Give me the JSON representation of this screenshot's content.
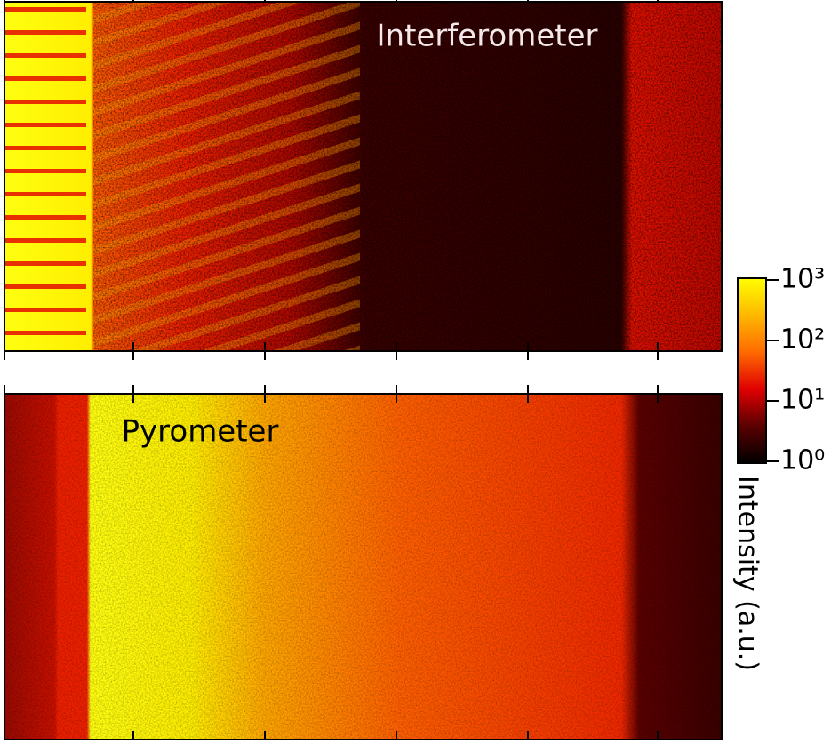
{
  "chart_data": {
    "type": "heatmap",
    "panels": [
      {
        "title": "Interferometer"
      },
      {
        "title": "Pyrometer"
      }
    ],
    "colorbar": {
      "label": "Intensity (a.u.)",
      "log_scale": true,
      "zlim": [
        1,
        1000
      ],
      "zticks": [
        {
          "value": 1,
          "label": "10⁰"
        },
        {
          "value": 10,
          "label": "10¹"
        },
        {
          "value": 100,
          "label": "10²"
        },
        {
          "value": 1000,
          "label": "10³"
        }
      ],
      "colors": [
        "#000000",
        "#5a0000",
        "#e00000",
        "#ff6a00",
        "#ffb800",
        "#ffff00"
      ]
    }
  }
}
